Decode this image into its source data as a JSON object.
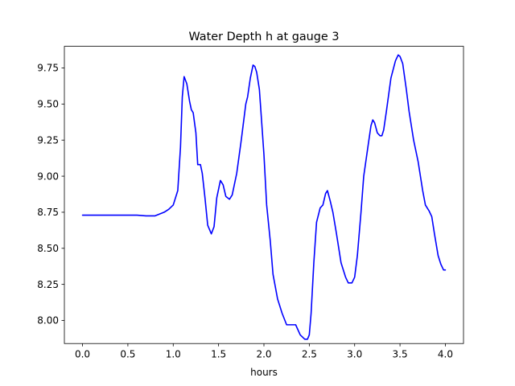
{
  "chart_data": {
    "type": "line",
    "title": "Water Depth h at gauge 3",
    "xlabel": "hours",
    "ylabel": "",
    "xlim": [
      -0.2,
      4.2
    ],
    "ylim": [
      7.84,
      9.9
    ],
    "xticks": [
      "0.0",
      "0.5",
      "1.0",
      "1.5",
      "2.0",
      "2.5",
      "3.0",
      "3.5",
      "4.0"
    ],
    "yticks": [
      "8.00",
      "8.25",
      "8.50",
      "8.75",
      "9.00",
      "9.25",
      "9.50",
      "9.75"
    ],
    "grid": false,
    "legend": "none",
    "series": [
      {
        "color": "#0000ff",
        "x": [
          0.0,
          0.2,
          0.4,
          0.6,
          0.7,
          0.8,
          0.9,
          0.95,
          1.0,
          1.05,
          1.08,
          1.1,
          1.12,
          1.15,
          1.18,
          1.2,
          1.22,
          1.25,
          1.27,
          1.3,
          1.32,
          1.35,
          1.38,
          1.42,
          1.45,
          1.48,
          1.52,
          1.55,
          1.58,
          1.62,
          1.65,
          1.7,
          1.75,
          1.8,
          1.82,
          1.85,
          1.88,
          1.9,
          1.92,
          1.95,
          2.0,
          2.03,
          2.07,
          2.1,
          2.15,
          2.2,
          2.25,
          2.3,
          2.35,
          2.4,
          2.45,
          2.48,
          2.5,
          2.52,
          2.55,
          2.58,
          2.62,
          2.65,
          2.68,
          2.7,
          2.73,
          2.76,
          2.8,
          2.85,
          2.9,
          2.93,
          2.97,
          3.0,
          3.03,
          3.07,
          3.1,
          3.15,
          3.18,
          3.2,
          3.22,
          3.25,
          3.28,
          3.3,
          3.32,
          3.35,
          3.4,
          3.45,
          3.48,
          3.5,
          3.53,
          3.57,
          3.6,
          3.65,
          3.7,
          3.75,
          3.78,
          3.82,
          3.85,
          3.88,
          3.92,
          3.95,
          3.98,
          4.0
        ],
        "y": [
          8.73,
          8.73,
          8.73,
          8.73,
          8.725,
          8.725,
          8.75,
          8.77,
          8.8,
          8.9,
          9.2,
          9.55,
          9.69,
          9.64,
          9.52,
          9.46,
          9.44,
          9.3,
          9.08,
          9.08,
          9.02,
          8.85,
          8.66,
          8.6,
          8.65,
          8.85,
          8.97,
          8.94,
          8.86,
          8.84,
          8.87,
          9.02,
          9.25,
          9.5,
          9.55,
          9.68,
          9.77,
          9.76,
          9.72,
          9.6,
          9.15,
          8.8,
          8.55,
          8.32,
          8.15,
          8.05,
          7.97,
          7.97,
          7.97,
          7.9,
          7.87,
          7.87,
          7.9,
          8.05,
          8.4,
          8.68,
          8.78,
          8.8,
          8.88,
          8.9,
          8.83,
          8.75,
          8.6,
          8.4,
          8.3,
          8.26,
          8.26,
          8.3,
          8.45,
          8.75,
          9.0,
          9.22,
          9.35,
          9.39,
          9.37,
          9.3,
          9.28,
          9.28,
          9.32,
          9.45,
          9.68,
          9.8,
          9.84,
          9.83,
          9.78,
          9.6,
          9.45,
          9.25,
          9.1,
          8.9,
          8.8,
          8.76,
          8.72,
          8.6,
          8.45,
          8.39,
          8.35,
          8.35
        ]
      }
    ]
  }
}
